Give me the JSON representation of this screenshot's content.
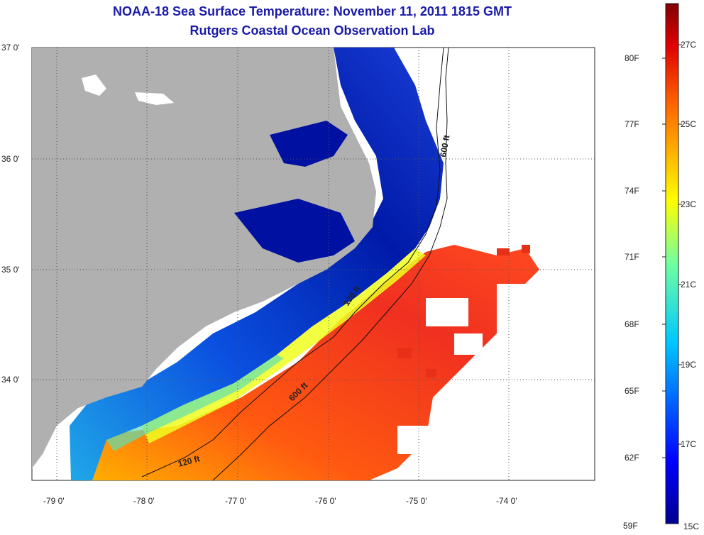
{
  "title": {
    "line1": "NOAA-18 Sea Surface Temperature:  November 11, 2011 1815 GMT",
    "line2": "Rutgers Coastal Ocean Observation Lab"
  },
  "map": {
    "lat_labels": [
      "37 0'",
      "36 0'",
      "35 0'",
      "34 0'"
    ],
    "lon_labels": [
      "-79 0'",
      "-78 0'",
      "-77 0'",
      "-76 0'",
      "-75 0'",
      "-74 0'"
    ],
    "contours": [
      "600 ft",
      "120 ft",
      "600 ft",
      "120 ft"
    ],
    "colors": {
      "land": "#b0b0b0",
      "grid": "#555555"
    }
  },
  "colorbar": {
    "fahrenheit": [
      "80F",
      "77F",
      "74F",
      "71F",
      "68F",
      "65F",
      "62F",
      "59F"
    ],
    "celsius": [
      "27C",
      "25C",
      "23C",
      "21C",
      "19C",
      "17C",
      "15C"
    ]
  }
}
